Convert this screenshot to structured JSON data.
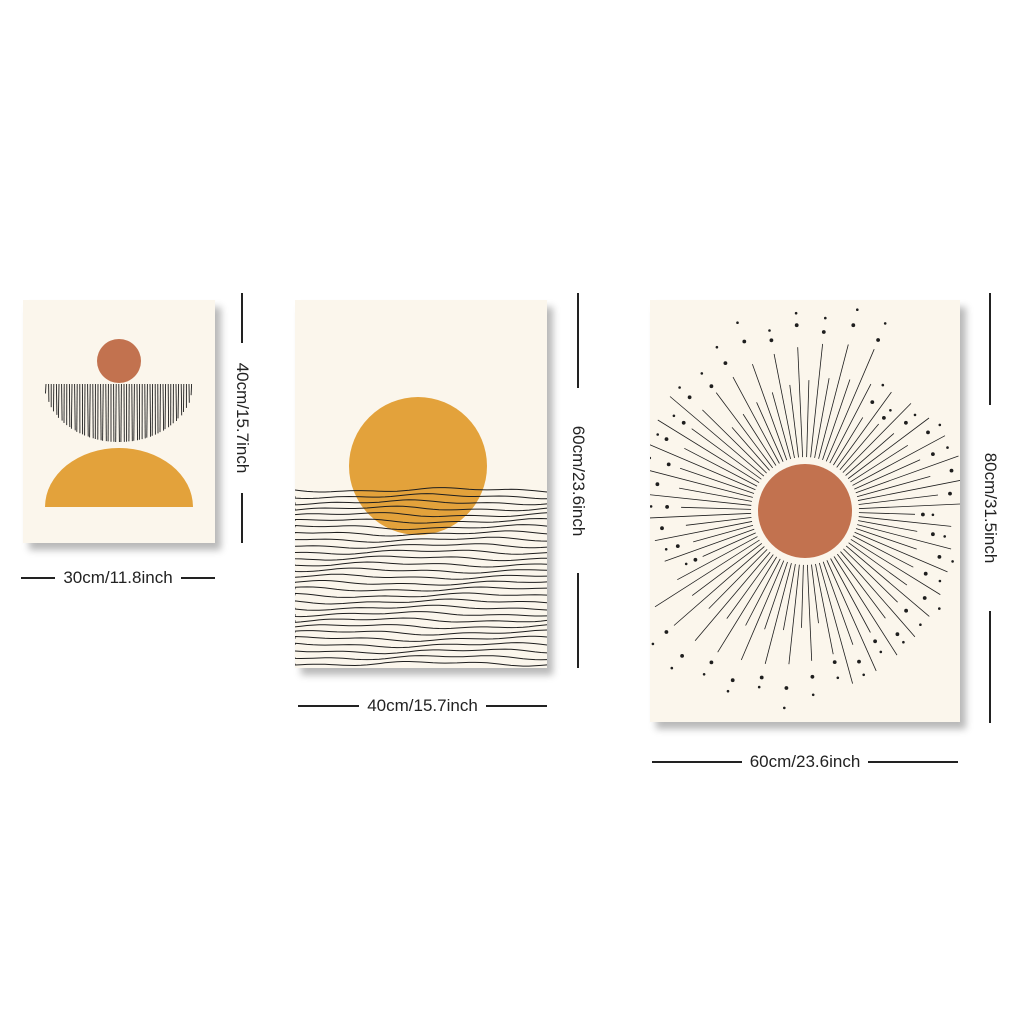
{
  "products": [
    {
      "width_label": "30cm/11.8inch",
      "height_label": "40cm/15.7inch",
      "artwork": "stacked-shapes"
    },
    {
      "width_label": "40cm/15.7inch",
      "height_label": "60cm/23.6inch",
      "artwork": "sunset-over-lines"
    },
    {
      "width_label": "60cm/23.6inch",
      "height_label": "80cm/31.5inch",
      "artwork": "sunburst"
    }
  ],
  "colors": {
    "paper": "#fbf6ec",
    "ochre": "#e3a23b",
    "terracotta": "#c2724f",
    "ink": "#1e1e1e"
  }
}
